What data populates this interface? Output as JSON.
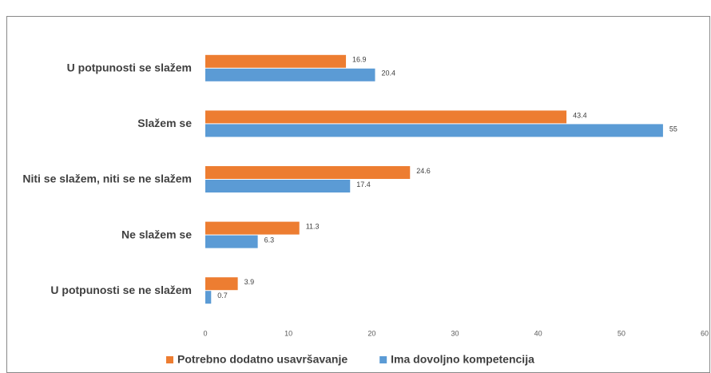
{
  "chart_data": {
    "type": "barh",
    "categories": [
      "U potpunosti se slažem",
      "Slažem se",
      "Niti se slažem, niti se ne slažem",
      "Ne slažem se",
      "U potpunosti se ne slažem"
    ],
    "series": [
      {
        "name": "Potrebno dodatno usavršavanje",
        "color": "#ed7d31",
        "values": [
          16.9,
          43.4,
          24.6,
          11.3,
          3.9
        ]
      },
      {
        "name": "Ima dovoljno kompetencija",
        "color": "#5b9bd5",
        "values": [
          20.4,
          55,
          17.4,
          6.3,
          0.7
        ]
      }
    ],
    "xlim": [
      0,
      60
    ],
    "xticks": [
      0,
      10,
      20,
      30,
      40,
      50,
      60
    ],
    "grid": false,
    "legend": "bottom",
    "data_labels": true
  }
}
